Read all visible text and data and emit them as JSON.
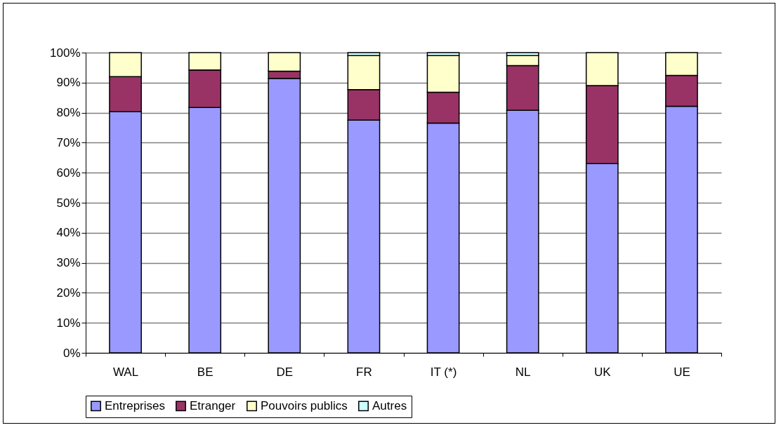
{
  "chart_data": {
    "type": "bar",
    "stacked": true,
    "categories": [
      "WAL",
      "BE",
      "DE",
      "FR",
      "IT (*)",
      "NL",
      "UK",
      "UE"
    ],
    "series": [
      {
        "name": "Entreprises",
        "color": "#9999ff",
        "values": [
          80.3,
          81.7,
          91.4,
          77.5,
          76.5,
          80.8,
          63,
          82.1
        ]
      },
      {
        "name": "Etranger",
        "color": "#993366",
        "values": [
          11.7,
          12.5,
          2.4,
          10.2,
          10.3,
          14.9,
          26,
          10.3
        ]
      },
      {
        "name": "Pouvoirs publics",
        "color": "#ffffcc",
        "values": [
          8,
          5.8,
          6.2,
          11.3,
          12.2,
          3.3,
          11,
          7.6
        ]
      },
      {
        "name": "Autres",
        "color": "#ccffff",
        "values": [
          0,
          0,
          0,
          1,
          1,
          1,
          0,
          0
        ]
      }
    ],
    "ylim": [
      0,
      100
    ],
    "yticks": [
      {
        "value": 0,
        "label": "0%"
      },
      {
        "value": 10,
        "label": "10%"
      },
      {
        "value": 20,
        "label": "20%"
      },
      {
        "value": 30,
        "label": "30%"
      },
      {
        "value": 40,
        "label": "40%"
      },
      {
        "value": 50,
        "label": "50%"
      },
      {
        "value": 60,
        "label": "60%"
      },
      {
        "value": 70,
        "label": "70%"
      },
      {
        "value": 80,
        "label": "80%"
      },
      {
        "value": 90,
        "label": "90%"
      },
      {
        "value": 100,
        "label": "100%"
      }
    ],
    "grid": "y",
    "legend": "bottom"
  }
}
